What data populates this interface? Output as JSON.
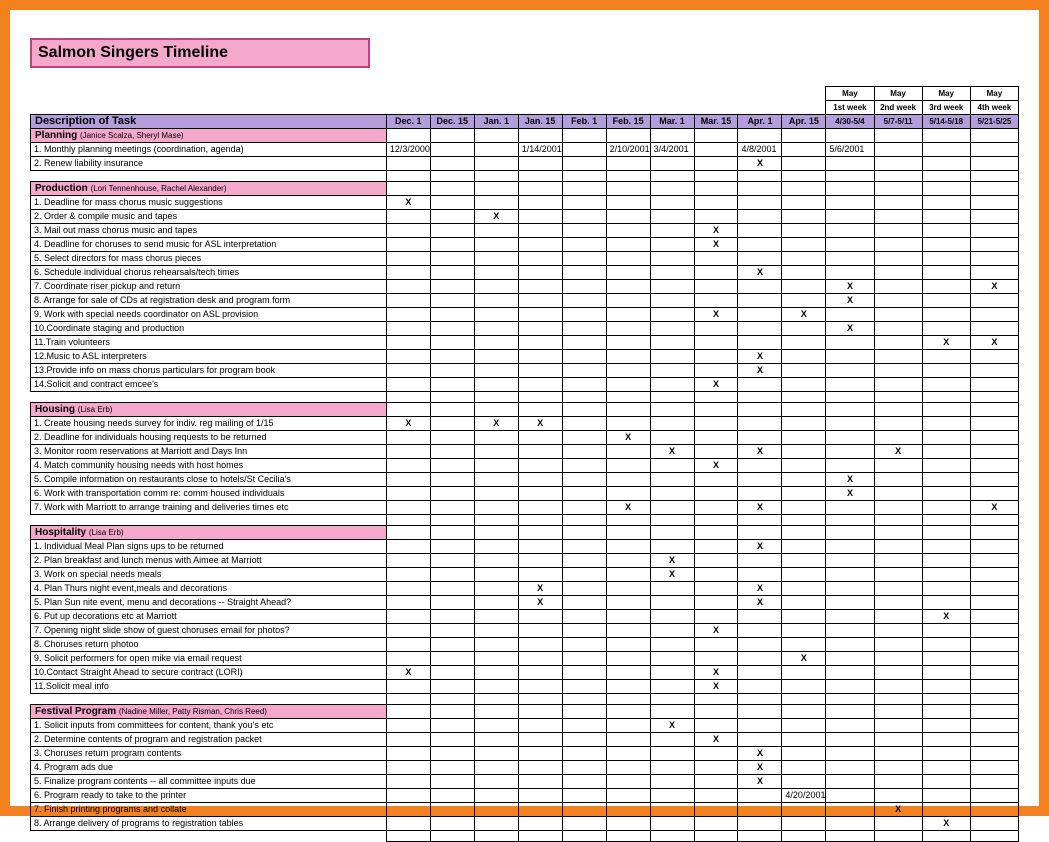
{
  "title": "Salmon Singers Timeline",
  "colors": {
    "border_outer": "#f48120",
    "title_bg": "#f4a8cc",
    "title_border": "#c04080",
    "header_bg": "#b39ddb",
    "section_bg": "#f4a8cc",
    "grid": "#000000"
  },
  "may_pre": [
    {
      "top": "May",
      "bot": "1st week"
    },
    {
      "top": "May",
      "bot": "2nd week"
    },
    {
      "top": "May",
      "bot": "3rd week"
    },
    {
      "top": "May",
      "bot": "4th week"
    }
  ],
  "columns": {
    "first": "Description of Task",
    "dates": [
      "Dec. 1",
      "Dec. 15",
      "Jan. 1",
      "Jan. 15",
      "Feb. 1",
      "Feb. 15",
      "Mar. 1",
      "Mar. 15",
      "Apr. 1",
      "Apr. 15"
    ],
    "may": [
      "4/30-5/4",
      "5/7-5/11",
      "5/14-5/18",
      "5/21-5/25"
    ]
  },
  "sections": [
    {
      "name": "Planning",
      "sub": "(Janice Scalza, Sheryl Mase)",
      "rows": [
        {
          "t": "1.  Monthly planning meetings (coordination, agenda)",
          "c": [
            "12/3/2000",
            "",
            "",
            "1/14/2001",
            "",
            "2/10/2001",
            "3/4/2001",
            "",
            "4/8/2001",
            "",
            "5/6/2001",
            "",
            "",
            ""
          ]
        },
        {
          "t": "2.  Renew liability insurance",
          "c": [
            "",
            "",
            "",
            "",
            "",
            "",
            "",
            "",
            "X",
            "",
            "",
            "",
            "",
            ""
          ]
        }
      ]
    },
    {
      "name": "Production",
      "sub": "(Lori Tennenhouse, Rachel Alexander)",
      "rows": [
        {
          "t": "1.  Deadline for mass chorus music suggestions",
          "c": [
            "X",
            "",
            "",
            "",
            "",
            "",
            "",
            "",
            "",
            "",
            "",
            "",
            "",
            ""
          ]
        },
        {
          "t": "2.  Order & compile music and tapes",
          "c": [
            "",
            "",
            "X",
            "",
            "",
            "",
            "",
            "",
            "",
            "",
            "",
            "",
            "",
            ""
          ]
        },
        {
          "t": "3.  Mail out mass chorus music and tapes",
          "c": [
            "",
            "",
            "",
            "",
            "",
            "",
            "",
            "X",
            "",
            "",
            "",
            "",
            "",
            ""
          ]
        },
        {
          "t": "4.  Deadline for choruses to send music for ASL interpretation",
          "c": [
            "",
            "",
            "",
            "",
            "",
            "",
            "",
            "X",
            "",
            "",
            "",
            "",
            "",
            ""
          ]
        },
        {
          "t": "5.  Select directors for mass chorus pieces",
          "c": [
            "",
            "",
            "",
            "",
            "",
            "",
            "",
            "",
            "",
            "",
            "",
            "",
            "",
            ""
          ]
        },
        {
          "t": "6.  Schedule individual chorus rehearsals/tech times",
          "c": [
            "",
            "",
            "",
            "",
            "",
            "",
            "",
            "",
            "X",
            "",
            "",
            "",
            "",
            ""
          ]
        },
        {
          "t": "7.  Coordinate riser pickup and return",
          "c": [
            "",
            "",
            "",
            "",
            "",
            "",
            "",
            "",
            "",
            "",
            "X",
            "",
            "",
            "X"
          ]
        },
        {
          "t": "8.  Arrange for sale of CDs at registration desk and program form",
          "c": [
            "",
            "",
            "",
            "",
            "",
            "",
            "",
            "",
            "",
            "",
            "X",
            "",
            "",
            ""
          ]
        },
        {
          "t": "9.  Work with special needs coordinator on ASL provision",
          "c": [
            "",
            "",
            "",
            "",
            "",
            "",
            "",
            "X",
            "",
            "X",
            "",
            "",
            "",
            ""
          ]
        },
        {
          "t": "10.Coordinate staging and production",
          "c": [
            "",
            "",
            "",
            "",
            "",
            "",
            "",
            "",
            "",
            "",
            "X",
            "",
            "",
            ""
          ]
        },
        {
          "t": "11.Train volunteers",
          "c": [
            "",
            "",
            "",
            "",
            "",
            "",
            "",
            "",
            "",
            "",
            "",
            "",
            "X",
            "X"
          ]
        },
        {
          "t": "12.Music to ASL interpreters",
          "c": [
            "",
            "",
            "",
            "",
            "",
            "",
            "",
            "",
            "X",
            "",
            "",
            "",
            "",
            ""
          ]
        },
        {
          "t": "13.Provide info on mass chorus particulars for program book",
          "c": [
            "",
            "",
            "",
            "",
            "",
            "",
            "",
            "",
            "X",
            "",
            "",
            "",
            "",
            ""
          ]
        },
        {
          "t": "14.Solicit and contract emcee's",
          "c": [
            "",
            "",
            "",
            "",
            "",
            "",
            "",
            "X",
            "",
            "",
            "",
            "",
            "",
            ""
          ]
        }
      ]
    },
    {
      "name": "Housing",
      "sub": "(Lisa Erb)",
      "rows": [
        {
          "t": "1.  Create housing needs survey for indiv. reg mailing of 1/15",
          "c": [
            "X",
            "",
            "X",
            "X",
            "",
            "",
            "",
            "",
            "",
            "",
            "",
            "",
            "",
            ""
          ]
        },
        {
          "t": "2.  Deadline for individuals housing requests to be returned",
          "c": [
            "",
            "",
            "",
            "",
            "",
            "X",
            "",
            "",
            "",
            "",
            "",
            "",
            "",
            ""
          ]
        },
        {
          "t": "3.  Monitor room reservations at Marriott and Days Inn",
          "c": [
            "",
            "",
            "",
            "",
            "",
            "",
            "X",
            "",
            "X",
            "",
            "",
            "X",
            "",
            ""
          ]
        },
        {
          "t": "4.  Match community housing needs with host homes",
          "c": [
            "",
            "",
            "",
            "",
            "",
            "",
            "",
            "X",
            "",
            "",
            "",
            "",
            "",
            ""
          ]
        },
        {
          "t": "5.  Compile information on restaurants close to hotels/St Cecilia's",
          "c": [
            "",
            "",
            "",
            "",
            "",
            "",
            "",
            "",
            "",
            "",
            "X",
            "",
            "",
            ""
          ]
        },
        {
          "t": "6.  Work with transportation comm re: comm housed individuals",
          "c": [
            "",
            "",
            "",
            "",
            "",
            "",
            "",
            "",
            "",
            "",
            "X",
            "",
            "",
            ""
          ]
        },
        {
          "t": "7.  Work with Marriott to arrange training and deliveries times etc",
          "c": [
            "",
            "",
            "",
            "",
            "",
            "X",
            "",
            "",
            "X",
            "",
            "",
            "",
            "",
            "X"
          ]
        }
      ]
    },
    {
      "name": "Hospitality",
      "sub": "(Lisa Erb)",
      "rows": [
        {
          "t": "1.  Individual Meal Plan signs ups to be returned",
          "c": [
            "",
            "",
            "",
            "",
            "",
            "",
            "",
            "",
            "X",
            "",
            "",
            "",
            "",
            ""
          ]
        },
        {
          "t": "2.  Plan breakfast and lunch menus with Aimee at Marriott",
          "c": [
            "",
            "",
            "",
            "",
            "",
            "",
            "X",
            "",
            "",
            "",
            "",
            "",
            "",
            ""
          ]
        },
        {
          "t": "3.  Work on special needs meals",
          "c": [
            "",
            "",
            "",
            "",
            "",
            "",
            "X",
            "",
            "",
            "",
            "",
            "",
            "",
            ""
          ]
        },
        {
          "t": "4.  Plan Thurs night event,meals and decorations",
          "c": [
            "",
            "",
            "",
            "X",
            "",
            "",
            "",
            "",
            "X",
            "",
            "",
            "",
            "",
            ""
          ]
        },
        {
          "t": "5.  Plan Sun nite event, menu and decorations -- Straight Ahead?",
          "c": [
            "",
            "",
            "",
            "X",
            "",
            "",
            "",
            "",
            "X",
            "",
            "",
            "",
            "",
            ""
          ]
        },
        {
          "t": "6.  Put up decorations etc at Marriott",
          "c": [
            "",
            "",
            "",
            "",
            "",
            "",
            "",
            "",
            "",
            "",
            "",
            "",
            "X",
            ""
          ]
        },
        {
          "t": "7.  Opening night slide show of guest choruses email for photos?",
          "c": [
            "",
            "",
            "",
            "",
            "",
            "",
            "",
            "X",
            "",
            "",
            "",
            "",
            "",
            ""
          ]
        },
        {
          "t": "8.  Choruses return photoo",
          "c": [
            "",
            "",
            "",
            "",
            "",
            "",
            "",
            "",
            "",
            "",
            "",
            "",
            "",
            ""
          ]
        },
        {
          "t": "9.  Solicit performers for open mike via email request",
          "c": [
            "",
            "",
            "",
            "",
            "",
            "",
            "",
            "",
            "",
            "X",
            "",
            "",
            "",
            ""
          ]
        },
        {
          "t": "10.Contact Straight Ahead to secure contract (LORI)",
          "c": [
            "X",
            "",
            "",
            "",
            "",
            "",
            "",
            "X",
            "",
            "",
            "",
            "",
            "",
            ""
          ]
        },
        {
          "t": "11.Solicit meal info",
          "c": [
            "",
            "",
            "",
            "",
            "",
            "",
            "",
            "X",
            "",
            "",
            "",
            "",
            "",
            ""
          ]
        }
      ]
    },
    {
      "name": "Festival Program",
      "sub": "(Nadine Miller, Patty Risman, Chris Reed)",
      "rows": [
        {
          "t": "1.  Solicit inputs from committees for content, thank you's etc",
          "c": [
            "",
            "",
            "",
            "",
            "",
            "",
            "X",
            "",
            "",
            "",
            "",
            "",
            "",
            ""
          ]
        },
        {
          "t": "2.  Determine contents of program and registration packet",
          "c": [
            "",
            "",
            "",
            "",
            "",
            "",
            "",
            "X",
            "",
            "",
            "",
            "",
            "",
            ""
          ]
        },
        {
          "t": "3.  Choruses return program contents",
          "c": [
            "",
            "",
            "",
            "",
            "",
            "",
            "",
            "",
            "X",
            "",
            "",
            "",
            "",
            ""
          ]
        },
        {
          "t": "4.  Program ads due",
          "c": [
            "",
            "",
            "",
            "",
            "",
            "",
            "",
            "",
            "X",
            "",
            "",
            "",
            "",
            ""
          ]
        },
        {
          "t": "5.  Finalize program contents -- all committee inputs due",
          "c": [
            "",
            "",
            "",
            "",
            "",
            "",
            "",
            "",
            "X",
            "",
            "",
            "",
            "",
            ""
          ]
        },
        {
          "t": "6.  Program ready to take to the printer",
          "c": [
            "",
            "",
            "",
            "",
            "",
            "",
            "",
            "",
            "",
            "4/20/2001",
            "",
            "",
            "",
            ""
          ]
        },
        {
          "t": "7.  Finish printing programs and collate",
          "c": [
            "",
            "",
            "",
            "",
            "",
            "",
            "",
            "",
            "",
            "",
            "",
            "X",
            "",
            ""
          ]
        },
        {
          "t": "8.  Arrange delivery of programs to registration tables",
          "c": [
            "",
            "",
            "",
            "",
            "",
            "",
            "",
            "",
            "",
            "",
            "",
            "",
            "X",
            ""
          ]
        }
      ]
    }
  ]
}
